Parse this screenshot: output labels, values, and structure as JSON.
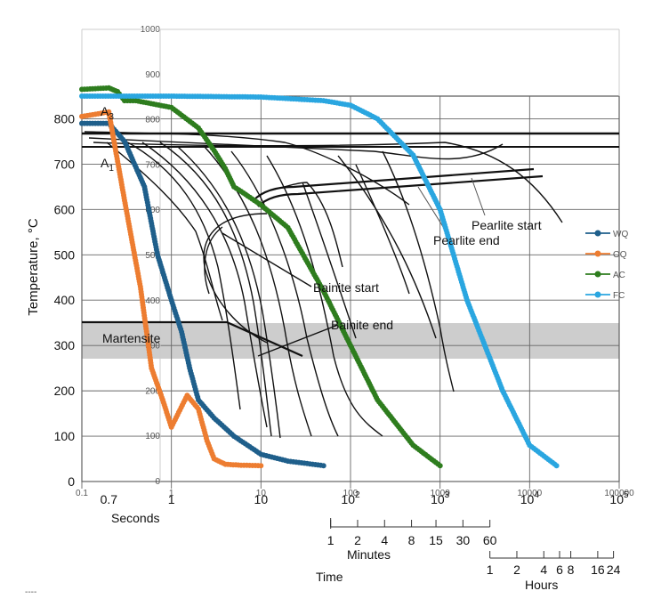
{
  "chart_data": {
    "type": "line",
    "title": "",
    "ylabel": "Temperature, °C",
    "xlabel_seconds": "Seconds",
    "xlabel_time": "Time",
    "xlabel_minutes": "Minutes",
    "xlabel_hours": "Hours",
    "ylim": [
      0,
      850
    ],
    "y_ticks": [
      "0",
      "100",
      "200",
      "300",
      "400",
      "500",
      "600",
      "700",
      "800"
    ],
    "secondary_y_ticks": [
      "0",
      "100",
      "200",
      "300",
      "400",
      "500",
      "600",
      "700",
      "800",
      "900",
      "1000"
    ],
    "x_ticks_seconds": [
      "0.7",
      "1",
      "10",
      "10",
      "10",
      "10",
      "10"
    ],
    "x_tick_exponents": [
      "",
      "",
      "",
      "2",
      "3",
      "4",
      "5"
    ],
    "secondary_x_ticks": [
      "0.1",
      "1",
      "10",
      "100",
      "1000",
      "10000",
      "100000"
    ],
    "minutes_ticks": [
      "1",
      "2",
      "4",
      "8",
      "15",
      "30",
      "60"
    ],
    "hours_ticks": [
      "1",
      "2",
      "4",
      "6",
      "8",
      "16",
      "24"
    ],
    "annotations": {
      "a3": "A",
      "a3_sub": "3",
      "a1": "A",
      "a1_sub": "1",
      "martensite": "Martensite",
      "pearlite_start": "Pearlite start",
      "pearlite_end": "Pearlite end",
      "bainite_start": "Bainite start",
      "bainite_end": "Bainite end"
    },
    "footer_mark": "----",
    "colors": {
      "WQ": "#1f5f8b",
      "OQ": "#ed7d31",
      "AC": "#2e7d1e",
      "FC": "#2aa6e0",
      "grid": "#444444",
      "martensite_band": "#c8c8c8"
    },
    "series": [
      {
        "name": "WQ",
        "x": [
          0.1,
          0.2,
          0.3,
          0.5,
          0.7,
          1,
          1.3,
          1.6,
          2,
          3,
          5,
          10,
          20,
          50
        ],
        "y": [
          790,
          790,
          750,
          650,
          500,
          400,
          330,
          250,
          180,
          140,
          100,
          60,
          45,
          35
        ]
      },
      {
        "name": "OQ",
        "x": [
          0.1,
          0.2,
          0.3,
          0.45,
          0.6,
          0.8,
          1,
          1.5,
          2,
          2.5,
          3,
          4,
          6,
          10
        ],
        "y": [
          805,
          815,
          620,
          430,
          250,
          180,
          120,
          190,
          160,
          90,
          50,
          38,
          36,
          35
        ]
      },
      {
        "name": "AC",
        "x": [
          0.1,
          0.2,
          0.25,
          0.3,
          0.4,
          1,
          2,
          3,
          4,
          5,
          6,
          10,
          20,
          50,
          100,
          200,
          500,
          1000
        ],
        "y": [
          865,
          868,
          860,
          840,
          840,
          825,
          780,
          730,
          690,
          650,
          640,
          610,
          560,
          420,
          300,
          180,
          80,
          35
        ]
      },
      {
        "name": "FC",
        "x": [
          0.1,
          1,
          10,
          50,
          100,
          200,
          500,
          1000,
          2000,
          5000,
          10000,
          20000
        ],
        "y": [
          850,
          850,
          848,
          840,
          830,
          800,
          720,
          600,
          400,
          200,
          80,
          35
        ]
      }
    ]
  }
}
